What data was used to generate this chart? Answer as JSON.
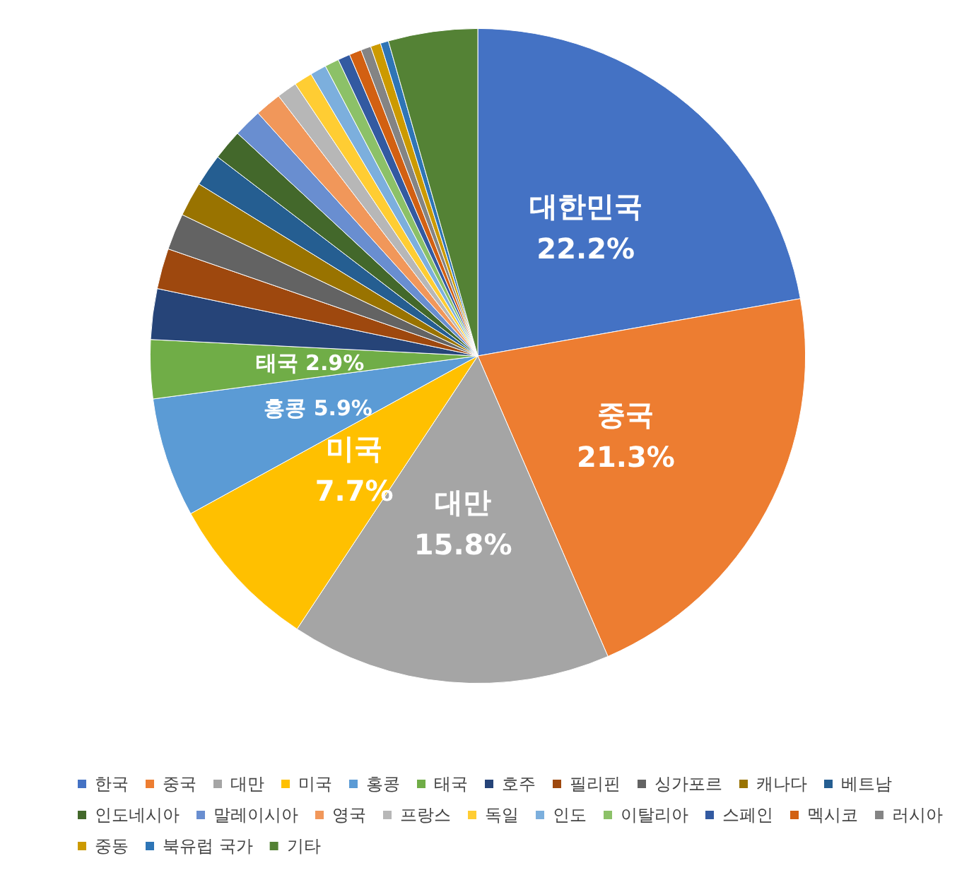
{
  "chart_data": {
    "type": "pie",
    "categories": [
      "한국",
      "중국",
      "대만",
      "미국",
      "홍콩",
      "태국",
      "호주",
      "필리핀",
      "싱가포르",
      "캐나다",
      "베트남",
      "인도네시아",
      "말레이시아",
      "영국",
      "프랑스",
      "독일",
      "인도",
      "이탈리아",
      "스페인",
      "멕시코",
      "러시아",
      "중동",
      "북유럽 국가",
      "기타"
    ],
    "values": [
      22.2,
      21.3,
      15.8,
      7.7,
      5.9,
      2.9,
      2.5,
      2.0,
      1.8,
      1.7,
      1.6,
      1.5,
      1.4,
      1.3,
      1.0,
      0.9,
      0.8,
      0.7,
      0.6,
      0.6,
      0.5,
      0.5,
      0.4,
      4.4
    ],
    "colors": [
      "#4472c4",
      "#ed7d31",
      "#a5a5a5",
      "#ffc000",
      "#5b9bd5",
      "#70ad47",
      "#264478",
      "#9e480e",
      "#636363",
      "#997300",
      "#255e91",
      "#43682b",
      "#698ed0",
      "#f1975a",
      "#b7b7b7",
      "#ffcd33",
      "#7cafdd",
      "#8cc168",
      "#335aa1",
      "#d26012",
      "#848484",
      "#cc9a00",
      "#2e75b6",
      "#548235"
    ],
    "value_labels": [
      "대한민국\n22.2%",
      "중국\n21.3%",
      "대만\n15.8%",
      "미국\n7.7%",
      "홍콩 5.9%",
      "태국 2.9%",
      null,
      null,
      null,
      null,
      null,
      null,
      null,
      null,
      null,
      null,
      null,
      null,
      null,
      null,
      null,
      null,
      null,
      null
    ],
    "legend": "bottom"
  }
}
